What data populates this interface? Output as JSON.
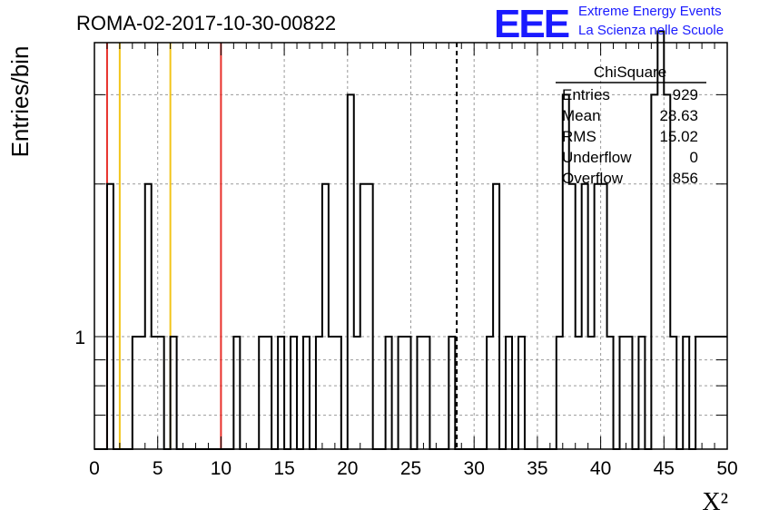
{
  "header": {
    "title": "ROMA-02-2017-10-30-00822",
    "logo_text": "EEE",
    "logo_line1": "Extreme Energy Events",
    "logo_line2": "La Scienza nelle Scuole"
  },
  "stats_box": {
    "title": "ChiSquare",
    "rows": [
      {
        "label": "Entries",
        "value": "929"
      },
      {
        "label": "Mean",
        "value": "28.63"
      },
      {
        "label": "RMS",
        "value": "15.02"
      },
      {
        "label": "Underflow",
        "value": "0"
      },
      {
        "label": "Overflow",
        "value": "856"
      }
    ]
  },
  "chart_data": {
    "type": "bar",
    "histogram": "step",
    "xlabel": "X²",
    "ylabel": "Entries/bin",
    "xlim": [
      0,
      50
    ],
    "ylim": [
      0.6,
      3.8
    ],
    "yscale": "log",
    "grid": true,
    "x_ticks": [
      0,
      5,
      10,
      15,
      20,
      25,
      30,
      35,
      40,
      45,
      50
    ],
    "y_tick_labels": [
      1
    ],
    "bin_width": 0.5,
    "bin_start": 0,
    "values": [
      0,
      0,
      2,
      0,
      0,
      0,
      1,
      1,
      2,
      1,
      1,
      0,
      1,
      0,
      0,
      0,
      0,
      0,
      0,
      0,
      0,
      0,
      1,
      0,
      0,
      0,
      1,
      1,
      0,
      1,
      0,
      1,
      0,
      1,
      0,
      1,
      2,
      1,
      1,
      0,
      3,
      1,
      2,
      2,
      0,
      0,
      1,
      0,
      1,
      1,
      0,
      1,
      1,
      0,
      0,
      0,
      1,
      0,
      0,
      0,
      0,
      0,
      1,
      2,
      0,
      1,
      0,
      1,
      0,
      0,
      0,
      0,
      0,
      1,
      3,
      2,
      1,
      2,
      1,
      2,
      2,
      1,
      0,
      1,
      1,
      0,
      1,
      0,
      3,
      4,
      3,
      1,
      0,
      1,
      0,
      1,
      1,
      1,
      1,
      1
    ],
    "vertical_lines": [
      {
        "x": 1,
        "color": "#e8302a"
      },
      {
        "x": 2,
        "color": "#f2c418"
      },
      {
        "x": 6,
        "color": "#f2c418"
      },
      {
        "x": 10,
        "color": "#e8302a"
      },
      {
        "x": 28.63,
        "color": "#000000",
        "dashed": true
      }
    ]
  }
}
